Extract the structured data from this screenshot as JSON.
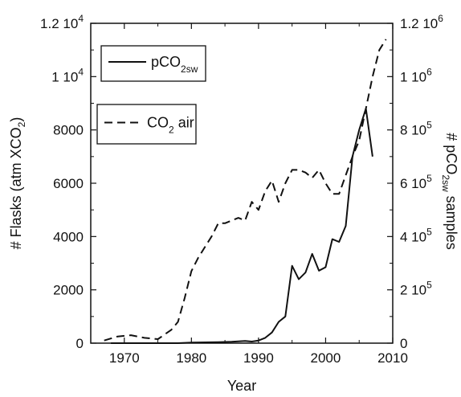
{
  "chart_data": {
    "type": "line",
    "xlabel": "Year",
    "ylabel_left": "# Flasks (atm XCO2)",
    "ylabel_right": "# pCO2sw samples",
    "xlim": [
      1965,
      2010
    ],
    "ylim_left": [
      0,
      12000
    ],
    "ylim_right": [
      0,
      1200000
    ],
    "grid": false,
    "legend_position": "top-left",
    "x_ticks": [
      1970,
      1980,
      1990,
      2000,
      2010
    ],
    "x_tick_labels": [
      "1970",
      "1980",
      "1990",
      "2000",
      "2010"
    ],
    "left_ticks": [
      0,
      2000,
      4000,
      6000,
      8000,
      10000,
      12000
    ],
    "left_tick_labels": [
      {
        "base": "0"
      },
      {
        "base": "2000"
      },
      {
        "base": "4000"
      },
      {
        "base": "6000"
      },
      {
        "base": "8000"
      },
      {
        "base": "1 10",
        "exp": "4"
      },
      {
        "base": "1.2 10",
        "exp": "4"
      }
    ],
    "right_ticks": [
      0,
      200000,
      400000,
      600000,
      800000,
      1000000,
      1200000
    ],
    "right_tick_labels": [
      {
        "base": "0"
      },
      {
        "base": "2 10",
        "exp": "5"
      },
      {
        "base": "4 10",
        "exp": "5"
      },
      {
        "base": "6 10",
        "exp": "5"
      },
      {
        "base": "8 10",
        "exp": "5"
      },
      {
        "base": "1 10",
        "exp": "6"
      },
      {
        "base": "1.2 10",
        "exp": "6"
      }
    ],
    "series": [
      {
        "name": "pCO2sw",
        "legend": {
          "main": "pCO",
          "sub": "2sw"
        },
        "axis": "right",
        "style": "solid",
        "x": [
          1968,
          1970,
          1972,
          1974,
          1976,
          1978,
          1980,
          1982,
          1984,
          1986,
          1988,
          1989,
          1990,
          1991,
          1992,
          1993,
          1994,
          1995,
          1996,
          1997,
          1998,
          1999,
          2000,
          2001,
          2002,
          2003,
          2004,
          2005,
          2006,
          2007
        ],
        "values": [
          0,
          0,
          0,
          0,
          0,
          0,
          2000,
          3000,
          4000,
          5000,
          8000,
          6000,
          10000,
          20000,
          40000,
          80000,
          100000,
          290000,
          240000,
          265000,
          335000,
          272000,
          285000,
          390000,
          380000,
          440000,
          700000,
          800000,
          880000,
          700000
        ]
      },
      {
        "name": "CO2 air",
        "legend": {
          "main": "CO",
          "sub": "2",
          "rest": " air"
        },
        "axis": "left",
        "style": "dashed",
        "x": [
          1967,
          1969,
          1971,
          1973,
          1975,
          1977,
          1978,
          1979,
          1980,
          1981,
          1982,
          1983,
          1984,
          1985,
          1986,
          1987,
          1988,
          1989,
          1990,
          1991,
          1992,
          1993,
          1994,
          1995,
          1996,
          1997,
          1998,
          1999,
          2000,
          2001,
          2002,
          2003,
          2004,
          2005,
          2006,
          2007,
          2008,
          2009
        ],
        "values": [
          100,
          250,
          300,
          200,
          150,
          500,
          800,
          1700,
          2700,
          3200,
          3600,
          4000,
          4500,
          4500,
          4600,
          4700,
          4600,
          5300,
          5000,
          5700,
          6100,
          5300,
          6000,
          6500,
          6500,
          6400,
          6200,
          6500,
          6000,
          5600,
          5600,
          6300,
          7000,
          7600,
          8800,
          10000,
          11000,
          11400
        ]
      }
    ]
  }
}
